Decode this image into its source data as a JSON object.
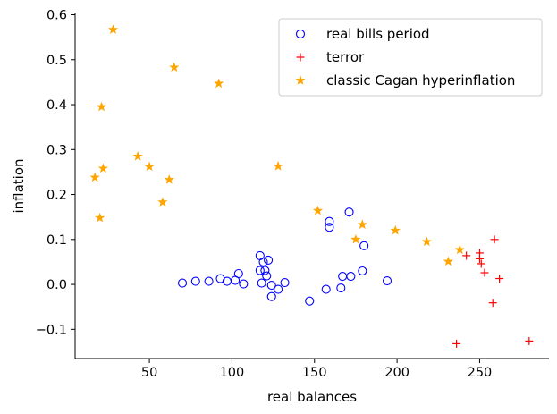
{
  "chart_data": {
    "type": "scatter",
    "xlabel": "real balances",
    "ylabel": "inflation",
    "xlim": [
      5,
      292
    ],
    "ylim": [
      -0.165,
      0.605
    ],
    "x_ticks": [
      50,
      100,
      150,
      200,
      250
    ],
    "y_ticks": [
      -0.1,
      0.0,
      0.1,
      0.2,
      0.3,
      0.4,
      0.5,
      0.6
    ],
    "x_tick_labels": [
      "50",
      "100",
      "150",
      "200",
      "250"
    ],
    "y_tick_labels": [
      "−0.1",
      "0.0",
      "0.1",
      "0.2",
      "0.3",
      "0.4",
      "0.5",
      "0.6"
    ],
    "grid": false,
    "legend_position": "top-right",
    "series": [
      {
        "name": "real bills period",
        "marker": "open-circle",
        "color": "#0000ff",
        "points": [
          [
            70,
            0.003
          ],
          [
            78,
            0.007
          ],
          [
            86,
            0.007
          ],
          [
            93,
            0.013
          ],
          [
            97,
            0.007
          ],
          [
            102,
            0.009
          ],
          [
            104,
            0.024
          ],
          [
            107,
            0.001
          ],
          [
            117,
            0.064
          ],
          [
            117,
            0.031
          ],
          [
            118,
            0.003
          ],
          [
            119,
            0.05
          ],
          [
            120,
            0.031
          ],
          [
            121,
            0.019
          ],
          [
            122,
            0.054
          ],
          [
            124,
            -0.002
          ],
          [
            124,
            -0.027
          ],
          [
            128,
            -0.011
          ],
          [
            132,
            0.004
          ],
          [
            147,
            -0.037
          ],
          [
            157,
            -0.011
          ],
          [
            159,
            0.14
          ],
          [
            159,
            0.127
          ],
          [
            166,
            -0.008
          ],
          [
            167,
            0.018
          ],
          [
            171,
            0.161
          ],
          [
            172,
            0.018
          ],
          [
            179,
            0.03
          ],
          [
            180,
            0.086
          ],
          [
            194,
            0.008
          ]
        ]
      },
      {
        "name": "terror",
        "marker": "plus",
        "color": "#ff0000",
        "points": [
          [
            236,
            -0.132
          ],
          [
            242,
            0.064
          ],
          [
            250,
            0.07
          ],
          [
            250,
            0.057
          ],
          [
            251,
            0.046
          ],
          [
            253,
            0.026
          ],
          [
            258,
            -0.041
          ],
          [
            259,
            0.1
          ],
          [
            262,
            0.013
          ],
          [
            280,
            -0.126
          ]
        ]
      },
      {
        "name": "classic Cagan hyperinflation",
        "marker": "star",
        "color": "#ffa500",
        "points": [
          [
            17,
            0.238
          ],
          [
            20,
            0.148
          ],
          [
            21,
            0.395
          ],
          [
            22,
            0.258
          ],
          [
            28,
            0.567
          ],
          [
            43,
            0.285
          ],
          [
            50,
            0.262
          ],
          [
            58,
            0.183
          ],
          [
            62,
            0.233
          ],
          [
            65,
            0.483
          ],
          [
            92,
            0.447
          ],
          [
            128,
            0.263
          ],
          [
            152,
            0.164
          ],
          [
            175,
            0.1
          ],
          [
            179,
            0.133
          ],
          [
            199,
            0.12
          ],
          [
            218,
            0.095
          ],
          [
            231,
            0.051
          ],
          [
            238,
            0.077
          ]
        ]
      }
    ]
  }
}
